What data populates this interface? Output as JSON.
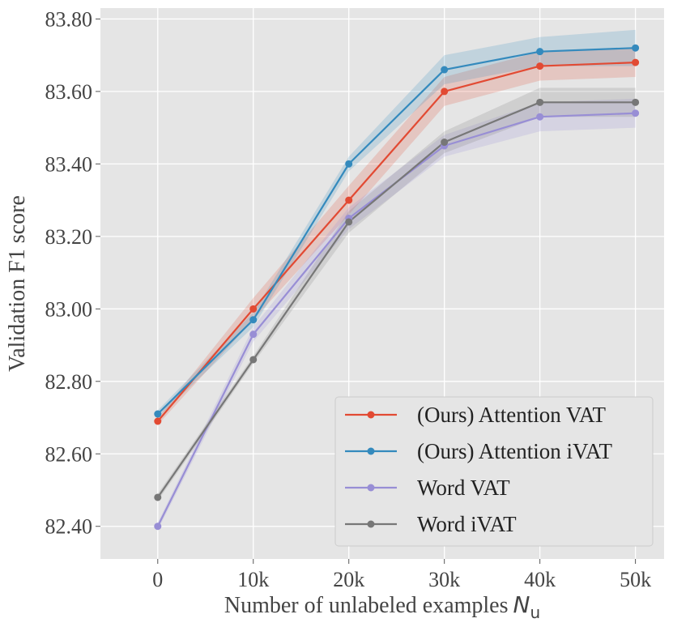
{
  "chart_data": {
    "type": "line",
    "title": "",
    "xlabel": "Number of unlabeled examples",
    "xlabel_symbol": "N",
    "xlabel_subscript": "u",
    "ylabel": "Validation F1 score",
    "x": [
      0,
      10000,
      20000,
      30000,
      40000,
      50000
    ],
    "x_tick_labels": [
      "0",
      "10k",
      "20k",
      "30k",
      "40k",
      "50k"
    ],
    "y_ticks": [
      82.4,
      82.6,
      82.8,
      83.0,
      83.2,
      83.4,
      83.6,
      83.8
    ],
    "y_tick_labels": [
      "82.40",
      "82.60",
      "82.80",
      "83.00",
      "83.20",
      "83.40",
      "83.60",
      "83.80"
    ],
    "xlim": [
      -6000,
      53000
    ],
    "ylim": [
      82.31,
      83.83
    ],
    "grid": true,
    "legend_position": "lower-right",
    "series": [
      {
        "name": "(Ours) Attention VAT",
        "color": "#E24A33",
        "values": [
          82.69,
          83.0,
          83.3,
          83.6,
          83.67,
          83.68
        ],
        "band_lower": [
          82.68,
          82.97,
          83.26,
          83.56,
          83.63,
          83.64
        ],
        "band_upper": [
          82.7,
          83.03,
          83.34,
          83.64,
          83.71,
          83.72
        ]
      },
      {
        "name": "(Ours) Attention iVAT",
        "color": "#348ABD",
        "values": [
          82.71,
          82.97,
          83.4,
          83.66,
          83.71,
          83.72
        ],
        "band_lower": [
          82.7,
          82.95,
          83.38,
          83.62,
          83.67,
          83.67
        ],
        "band_upper": [
          82.72,
          82.99,
          83.42,
          83.7,
          83.75,
          83.77
        ]
      },
      {
        "name": "Word VAT",
        "color": "#988ED5",
        "values": [
          82.4,
          82.93,
          83.25,
          83.45,
          83.53,
          83.54
        ],
        "band_lower": [
          82.39,
          82.91,
          83.22,
          83.42,
          83.49,
          83.5
        ],
        "band_upper": [
          82.41,
          82.95,
          83.28,
          83.48,
          83.57,
          83.58
        ]
      },
      {
        "name": "Word iVAT",
        "color": "#777777",
        "values": [
          82.48,
          82.86,
          83.24,
          83.46,
          83.57,
          83.57
        ],
        "band_lower": [
          82.47,
          82.85,
          83.21,
          83.43,
          83.53,
          83.53
        ],
        "band_upper": [
          82.49,
          82.87,
          83.27,
          83.49,
          83.61,
          83.61
        ]
      }
    ]
  }
}
